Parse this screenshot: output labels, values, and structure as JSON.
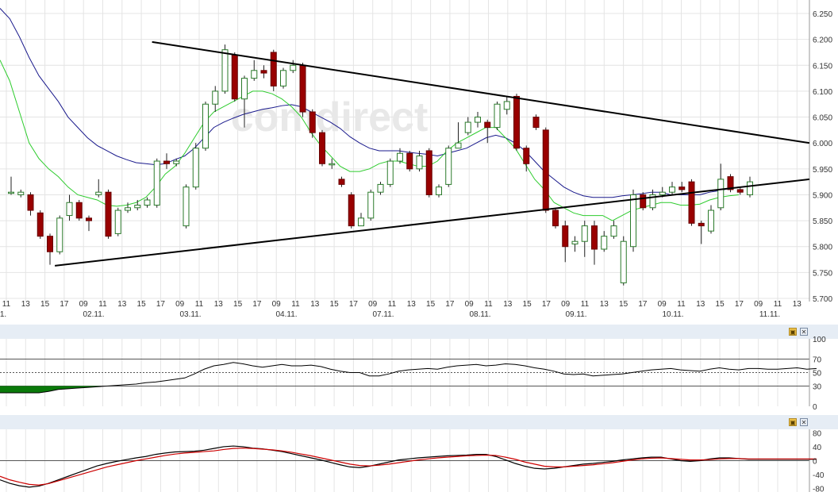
{
  "watermark": "comdirect",
  "panel_icons": {
    "settings": "settings-icon",
    "close": "close-icon",
    "settings_glyph": "▣",
    "close_glyph": "✕"
  },
  "chart_data": [
    {
      "type": "candlestick",
      "ylim": [
        5.7,
        6.25
      ],
      "yticks": [
        "6.250",
        "6.200",
        "6.150",
        "6.100",
        "6.050",
        "6.000",
        "5.950",
        "5.900",
        "5.850",
        "5.800",
        "5.750",
        "5.700"
      ],
      "x_tick_labels": [
        "11",
        "13",
        "15",
        "17",
        "09",
        "11",
        "13",
        "15",
        "17",
        "09",
        "11",
        "13",
        "15",
        "17",
        "09",
        "11",
        "13",
        "15",
        "17",
        "09",
        "11",
        "13",
        "15",
        "17",
        "09",
        "11",
        "13",
        "15",
        "17",
        "09",
        "11",
        "13",
        "15",
        "17",
        "09",
        "11",
        "13",
        "15",
        "17",
        "09",
        "11",
        "13",
        "15",
        "17",
        "09",
        "11",
        "13"
      ],
      "date_labels": [
        {
          "text": "1.",
          "slot": 0
        },
        {
          "text": "02.11.",
          "slot": 9
        },
        {
          "text": "03.11.",
          "slot": 19
        },
        {
          "text": "04.11.",
          "slot": 29
        },
        {
          "text": "07.11.",
          "slot": 39
        },
        {
          "text": "08.11.",
          "slot": 49
        },
        {
          "text": "09.11.",
          "slot": 59
        },
        {
          "text": "10.11.",
          "slot": 69
        },
        {
          "text": "11.11.",
          "slot": 79
        }
      ],
      "candles": [
        [
          5.905,
          5.905,
          5.935,
          5.9
        ],
        [
          5.9,
          5.905,
          5.91,
          5.895
        ],
        [
          5.9,
          5.87,
          5.905,
          5.86
        ],
        [
          5.865,
          5.82,
          5.87,
          5.815
        ],
        [
          5.82,
          5.79,
          5.825,
          5.765
        ],
        [
          5.79,
          5.855,
          5.86,
          5.785
        ],
        [
          5.86,
          5.885,
          5.9,
          5.85
        ],
        [
          5.885,
          5.855,
          5.89,
          5.85
        ],
        [
          5.855,
          5.85,
          5.86,
          5.83
        ],
        [
          5.9,
          5.905,
          5.93,
          5.895
        ],
        [
          5.905,
          5.82,
          5.91,
          5.815
        ],
        [
          5.825,
          5.87,
          5.875,
          5.82
        ],
        [
          5.87,
          5.875,
          5.885,
          5.865
        ],
        [
          5.875,
          5.88,
          5.89,
          5.87
        ],
        [
          5.88,
          5.89,
          5.895,
          5.875
        ],
        [
          5.88,
          5.965,
          5.97,
          5.875
        ],
        [
          5.965,
          5.96,
          5.98,
          5.95
        ],
        [
          5.96,
          5.965,
          5.97,
          5.955
        ],
        [
          5.84,
          5.915,
          5.92,
          5.835
        ],
        [
          5.915,
          5.99,
          6.0,
          5.91
        ],
        [
          5.99,
          6.075,
          6.08,
          5.985
        ],
        [
          6.075,
          6.1,
          6.11,
          6.06
        ],
        [
          6.1,
          6.18,
          6.19,
          6.095
        ],
        [
          6.17,
          6.085,
          6.175,
          6.08
        ],
        [
          6.085,
          6.125,
          6.13,
          6.03
        ],
        [
          6.125,
          6.14,
          6.16,
          6.12
        ],
        [
          6.14,
          6.135,
          6.15,
          6.125
        ],
        [
          6.175,
          6.11,
          6.18,
          6.1
        ],
        [
          6.11,
          6.14,
          6.145,
          6.105
        ],
        [
          6.14,
          6.15,
          6.16,
          6.135
        ],
        [
          6.15,
          6.06,
          6.155,
          6.05
        ],
        [
          6.06,
          6.02,
          6.065,
          6.01
        ],
        [
          6.02,
          5.96,
          6.025,
          5.955
        ],
        [
          5.96,
          5.96,
          5.97,
          5.95
        ],
        [
          5.93,
          5.92,
          5.935,
          5.915
        ],
        [
          5.9,
          5.84,
          5.905,
          5.835
        ],
        [
          5.84,
          5.855,
          5.865,
          5.84
        ],
        [
          5.855,
          5.905,
          5.91,
          5.85
        ],
        [
          5.905,
          5.92,
          5.925,
          5.9
        ],
        [
          5.92,
          5.965,
          5.97,
          5.915
        ],
        [
          5.965,
          5.98,
          5.99,
          5.96
        ],
        [
          5.98,
          5.95,
          5.985,
          5.945
        ],
        [
          5.95,
          5.975,
          5.985,
          5.945
        ],
        [
          5.985,
          5.9,
          5.99,
          5.895
        ],
        [
          5.9,
          5.915,
          5.92,
          5.895
        ],
        [
          5.92,
          5.99,
          5.995,
          5.915
        ],
        [
          5.99,
          6.0,
          6.04,
          5.99
        ],
        [
          6.02,
          6.04,
          6.05,
          6.015
        ],
        [
          6.04,
          6.05,
          6.06,
          6.03
        ],
        [
          6.04,
          6.03,
          6.045,
          6.0
        ],
        [
          6.03,
          6.075,
          6.08,
          6.025
        ],
        [
          6.065,
          6.08,
          6.09,
          6.055
        ],
        [
          6.09,
          5.99,
          6.095,
          5.985
        ],
        [
          5.99,
          5.96,
          5.995,
          5.945
        ],
        [
          6.05,
          6.03,
          6.055,
          6.025
        ],
        [
          6.025,
          5.87,
          6.03,
          5.865
        ],
        [
          5.87,
          5.84,
          5.875,
          5.835
        ],
        [
          5.84,
          5.8,
          5.85,
          5.77
        ],
        [
          5.805,
          5.81,
          5.82,
          5.79
        ],
        [
          5.81,
          5.84,
          5.85,
          5.78
        ],
        [
          5.84,
          5.795,
          5.85,
          5.765
        ],
        [
          5.795,
          5.82,
          5.83,
          5.79
        ],
        [
          5.82,
          5.84,
          5.85,
          5.815
        ],
        [
          5.73,
          5.81,
          5.82,
          5.725
        ],
        [
          5.8,
          5.9,
          5.91,
          5.79
        ],
        [
          5.9,
          5.875,
          5.905,
          5.87
        ],
        [
          5.875,
          5.9,
          5.91,
          5.87
        ],
        [
          5.9,
          5.905,
          5.915,
          5.895
        ],
        [
          5.905,
          5.915,
          5.925,
          5.9
        ],
        [
          5.915,
          5.91,
          5.925,
          5.905
        ],
        [
          5.925,
          5.845,
          5.93,
          5.84
        ],
        [
          5.845,
          5.84,
          5.85,
          5.805
        ],
        [
          5.83,
          5.87,
          5.88,
          5.825
        ],
        [
          5.875,
          5.93,
          5.96,
          5.87
        ],
        [
          5.935,
          5.91,
          5.94,
          5.905
        ],
        [
          5.91,
          5.905,
          5.915,
          5.9
        ],
        [
          5.9,
          5.925,
          5.935,
          5.895
        ]
      ],
      "series": [
        {
          "color": "#1a1a8c",
          "values": [
            6.26,
            6.24,
            6.205,
            6.165,
            6.13,
            6.105,
            6.08,
            6.05,
            6.03,
            6.01,
            5.995,
            5.985,
            5.975,
            5.968,
            5.962,
            5.96,
            5.958,
            5.96,
            5.968,
            5.975,
            5.99,
            6.01,
            6.03,
            6.04,
            6.048,
            6.055,
            6.06,
            6.065,
            6.068,
            6.072,
            6.074,
            6.07,
            6.06,
            6.05,
            6.04,
            6.028,
            6.012,
            6.0,
            5.99,
            5.985,
            5.985,
            5.985,
            5.982,
            5.98,
            5.978,
            5.975,
            5.98,
            5.985,
            5.99,
            6.0,
            6.01,
            6.015,
            6.01,
            6.0,
            5.985,
            5.965,
            5.945,
            5.93,
            5.915,
            5.905,
            5.898,
            5.895,
            5.895,
            5.895,
            5.898,
            5.9,
            5.902,
            5.905,
            5.905,
            5.9,
            5.9,
            5.9,
            5.9,
            5.905,
            5.908,
            5.912,
            5.915
          ]
        },
        {
          "color": "#2ecc2e",
          "values": [
            6.16,
            6.12,
            6.06,
            6.0,
            5.97,
            5.95,
            5.935,
            5.915,
            5.9,
            5.895,
            5.89,
            5.88,
            5.878,
            5.88,
            5.885,
            5.895,
            5.915,
            5.94,
            5.955,
            5.98,
            6.01,
            6.04,
            6.06,
            6.07,
            6.08,
            6.09,
            6.1,
            6.1,
            6.095,
            6.085,
            6.07,
            6.05,
            6.02,
            5.995,
            5.975,
            5.955,
            5.945,
            5.945,
            5.95,
            5.96,
            5.965,
            5.965,
            5.96,
            5.955,
            5.955,
            5.965,
            5.985,
            6.0,
            6.01,
            6.02,
            6.03,
            6.03,
            6.01,
            5.99,
            5.96,
            5.93,
            5.91,
            5.885,
            5.875,
            5.865,
            5.86,
            5.86,
            5.86,
            5.85,
            5.86,
            5.87,
            5.875,
            5.88,
            5.885,
            5.885,
            5.88,
            5.88,
            5.882,
            5.89,
            5.895,
            5.898,
            5.9
          ]
        }
      ],
      "trendlines": [
        {
          "from": [
            14.5,
            6.195
          ],
          "to": [
            83,
            6.0
          ]
        },
        {
          "from": [
            4.5,
            5.763
          ],
          "to": [
            83,
            5.93
          ]
        }
      ]
    },
    {
      "type": "line",
      "ylim": [
        0,
        100
      ],
      "yticks": [
        "100",
        "70",
        "50",
        "30",
        "0"
      ],
      "reference_lines": [
        70,
        50,
        30
      ],
      "values": [
        20,
        20,
        20,
        20,
        20,
        22,
        25,
        26,
        27,
        28,
        29,
        30,
        31,
        32,
        33,
        35,
        36,
        38,
        40,
        42,
        48,
        55,
        60,
        62,
        65,
        63,
        60,
        58,
        60,
        62,
        60,
        60,
        61,
        59,
        55,
        52,
        50,
        50,
        45,
        45,
        48,
        52,
        54,
        55,
        56,
        55,
        58,
        60,
        61,
        62,
        60,
        61,
        63,
        62,
        60,
        57,
        55,
        52,
        48,
        47,
        48,
        45,
        46,
        47,
        48,
        50,
        52,
        54,
        55,
        56,
        54,
        53,
        52,
        55,
        57,
        55,
        54,
        56,
        56,
        55,
        55,
        56,
        57,
        55,
        56
      ],
      "fill": {
        "below": 30,
        "color": "#0a7a0a"
      }
    },
    {
      "type": "line",
      "ylim": [
        -90,
        90
      ],
      "yticks": [
        "80",
        "40",
        "0",
        "-40",
        "-80"
      ],
      "series": [
        {
          "color": "#000000",
          "values": [
            -55,
            -65,
            -72,
            -76,
            -73,
            -65,
            -55,
            -45,
            -35,
            -25,
            -15,
            -8,
            -2,
            3,
            8,
            12,
            18,
            22,
            25,
            26,
            27,
            30,
            35,
            40,
            42,
            40,
            36,
            34,
            30,
            26,
            20,
            14,
            8,
            2,
            -5,
            -12,
            -18,
            -20,
            -16,
            -10,
            -4,
            2,
            5,
            8,
            10,
            12,
            14,
            15,
            16,
            18,
            18,
            12,
            2,
            -8,
            -16,
            -22,
            -24,
            -22,
            -18,
            -14,
            -10,
            -8,
            -5,
            -2,
            2,
            5,
            8,
            10,
            10,
            5,
            0,
            -2,
            0,
            5,
            8,
            8,
            6,
            4,
            4,
            4,
            4,
            4,
            4,
            4,
            4
          ]
        },
        {
          "color": "#cc0000",
          "values": [
            -45,
            -55,
            -62,
            -68,
            -70,
            -66,
            -58,
            -50,
            -42,
            -34,
            -26,
            -18,
            -12,
            -6,
            0,
            5,
            10,
            15,
            19,
            22,
            24,
            26,
            28,
            32,
            35,
            36,
            35,
            33,
            31,
            28,
            24,
            19,
            14,
            8,
            2,
            -4,
            -10,
            -14,
            -15,
            -13,
            -10,
            -6,
            -2,
            2,
            5,
            8,
            10,
            12,
            14,
            15,
            16,
            15,
            10,
            4,
            -4,
            -10,
            -16,
            -18,
            -18,
            -16,
            -14,
            -12,
            -9,
            -6,
            -2,
            2,
            5,
            7,
            8,
            6,
            4,
            2,
            2,
            3,
            5,
            6,
            6,
            5,
            5,
            5,
            5,
            5,
            5,
            5,
            5
          ]
        }
      ]
    }
  ]
}
